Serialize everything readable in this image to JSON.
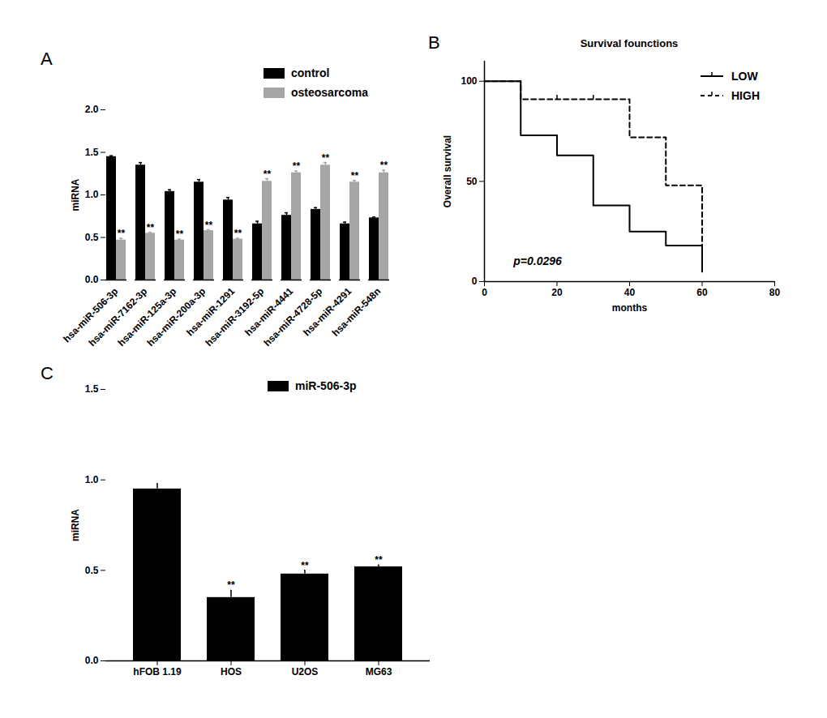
{
  "chart_data": [
    {
      "panel_label": "A",
      "type": "bar",
      "categories": [
        "hsa-miR-506-3p",
        "hsa-miR-7162-3p",
        "hsa-miR-125a-3p",
        "hsa-miR-200a-3p",
        "hsa-miR-1291",
        "hsa-miR-3192-5p",
        "hsa-miR-4441",
        "hsa-miR-4728-5p",
        "hsa-miR-4291",
        "hsa-miR-548n"
      ],
      "y_label": "miRNA",
      "ylim": [
        0,
        2
      ],
      "yticks": [
        {
          "value": 0,
          "label": "0.0"
        },
        {
          "value": 0.5,
          "label": "0.5"
        },
        {
          "value": 1,
          "label": "1.0"
        },
        {
          "value": 1.5,
          "label": "1.5"
        },
        {
          "value": 2,
          "label": "2.0"
        }
      ],
      "legend": "upper right",
      "series": [
        {
          "name": "control",
          "color": "#000000",
          "values": [
            1.45,
            1.35,
            1.04,
            1.15,
            0.94,
            0.66,
            0.76,
            0.83,
            0.66,
            0.73
          ],
          "errors": [
            0.01,
            0.03,
            0.02,
            0.03,
            0.03,
            0.03,
            0.03,
            0.02,
            0.02,
            0.01
          ]
        },
        {
          "name": "osteosarcoma",
          "color": "#a6a6a6",
          "values": [
            0.47,
            0.55,
            0.47,
            0.58,
            0.48,
            1.16,
            1.26,
            1.35,
            1.15,
            1.26
          ],
          "errors": [
            0.02,
            0.01,
            0.01,
            0.01,
            0.01,
            0.03,
            0.02,
            0.03,
            0.02,
            0.03
          ],
          "significance": [
            "**",
            "**",
            "**",
            "**",
            "**",
            "**",
            "**",
            "**",
            "**",
            "**"
          ]
        }
      ]
    },
    {
      "panel_label": "B",
      "type": "line",
      "title": "Survival founctions",
      "x_label": "months",
      "y_label": "Overall survival",
      "xlim": [
        0,
        80
      ],
      "xticks": [
        0,
        20,
        40,
        60,
        80
      ],
      "ylim": [
        0,
        110
      ],
      "yticks": [
        0,
        50,
        100
      ],
      "legend": "upper right",
      "annotations": [
        {
          "text": "p=0.0296",
          "x": 8,
          "y": 10
        }
      ],
      "series": [
        {
          "name": "LOW",
          "color": "#000000",
          "line_style": "solid",
          "marker": "tick",
          "x": [
            0,
            10,
            20,
            30,
            40,
            50,
            60
          ],
          "values": [
            100,
            73,
            63,
            38,
            25,
            18,
            5
          ]
        },
        {
          "name": "HIGH",
          "color": "#000000",
          "line_style": "dashed",
          "marker": "tick",
          "x": [
            0,
            10,
            40,
            50,
            60
          ],
          "values": [
            100,
            91,
            72,
            48,
            5
          ],
          "censored": [
            [
              20,
              91
            ],
            [
              30,
              91
            ]
          ]
        }
      ]
    },
    {
      "panel_label": "C",
      "type": "bar",
      "categories": [
        "hFOB 1.19",
        "HOS",
        "U2OS",
        "MG63"
      ],
      "y_label": "miRNA",
      "ylim": [
        0,
        1.5
      ],
      "yticks": [
        {
          "value": 0,
          "label": "0.0"
        },
        {
          "value": 0.5,
          "label": "0.5"
        },
        {
          "value": 1,
          "label": "1.0"
        },
        {
          "value": 1.5,
          "label": "1.5"
        }
      ],
      "legend": "upper right",
      "series": [
        {
          "name": "miR-506-3p",
          "color": "#000000",
          "values": [
            0.95,
            0.35,
            0.48,
            0.52
          ],
          "errors": [
            0.03,
            0.04,
            0.02,
            0.01
          ],
          "significance": [
            null,
            "**",
            "**",
            "**"
          ]
        }
      ]
    }
  ]
}
